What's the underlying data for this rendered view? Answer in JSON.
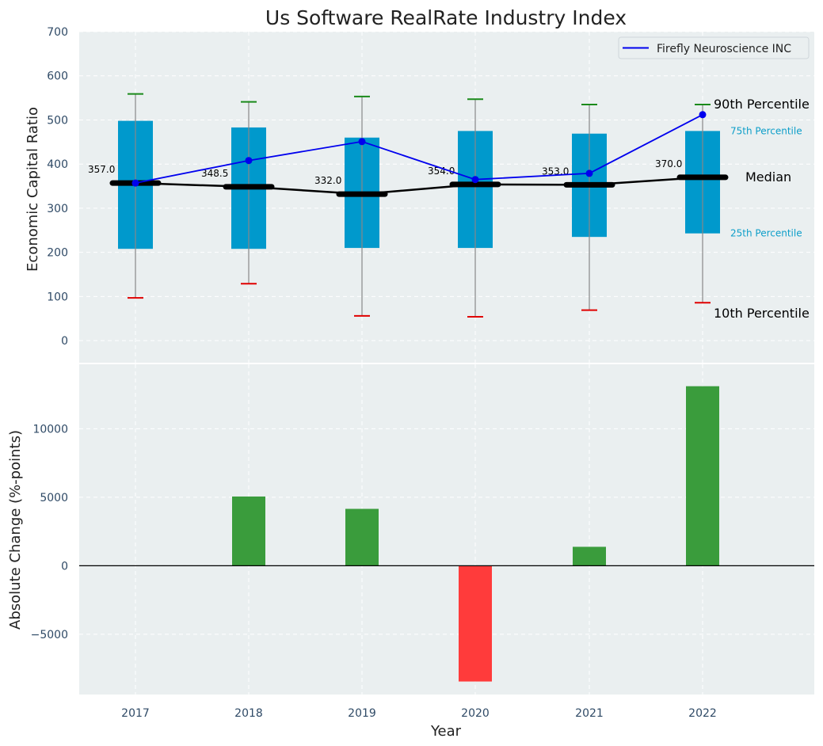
{
  "chart_data": [
    {
      "type": "box",
      "title": "Us Software RealRate Industry Index",
      "ylabel": "Economic Capital Ratio",
      "ylim": [
        -50,
        700
      ],
      "yticks": [
        0,
        100,
        200,
        300,
        400,
        500,
        600,
        700
      ],
      "categories": [
        "2017",
        "2018",
        "2019",
        "2020",
        "2021",
        "2022"
      ],
      "grid": true,
      "box_color": "#0099cc",
      "boxes": {
        "p10": [
          97,
          129,
          56,
          54,
          69,
          86
        ],
        "p25": [
          208,
          208,
          210,
          210,
          235,
          243
        ],
        "median": [
          357.0,
          348.5,
          332.0,
          354.0,
          353.0,
          370.0
        ],
        "p75": [
          498,
          483,
          460,
          475,
          469,
          475
        ],
        "p90": [
          559,
          541,
          553,
          547,
          535,
          535
        ]
      },
      "median_labels": [
        "357.0",
        "348.5",
        "332.0",
        "354.0",
        "353.0",
        "370.0"
      ],
      "series": [
        {
          "name": "Firefly Neuroscience INC",
          "color": "#0000ee",
          "values": [
            357,
            408,
            451,
            365,
            379,
            512
          ]
        }
      ],
      "legend": "top-right",
      "annotations": {
        "p90": "90th Percentile",
        "p75": "75th Percentile",
        "median": "Median",
        "p25": "25th Percentile",
        "p10": "10th Percentile"
      }
    },
    {
      "type": "bar",
      "xlabel": "Year",
      "ylabel": "Absolute Change (%-points)",
      "ylim": [
        -9400,
        14700
      ],
      "yticks": [
        -5000,
        0,
        5000,
        10000
      ],
      "ytick_labels": [
        "−5000",
        "0",
        "5000",
        "10000"
      ],
      "categories": [
        "2017",
        "2018",
        "2019",
        "2020",
        "2021",
        "2022"
      ],
      "values": [
        0,
        5050,
        4150,
        -8450,
        1380,
        13100
      ],
      "positive_color": "#3a9c3c",
      "negative_color": "#ff3b3b",
      "grid": true
    }
  ]
}
